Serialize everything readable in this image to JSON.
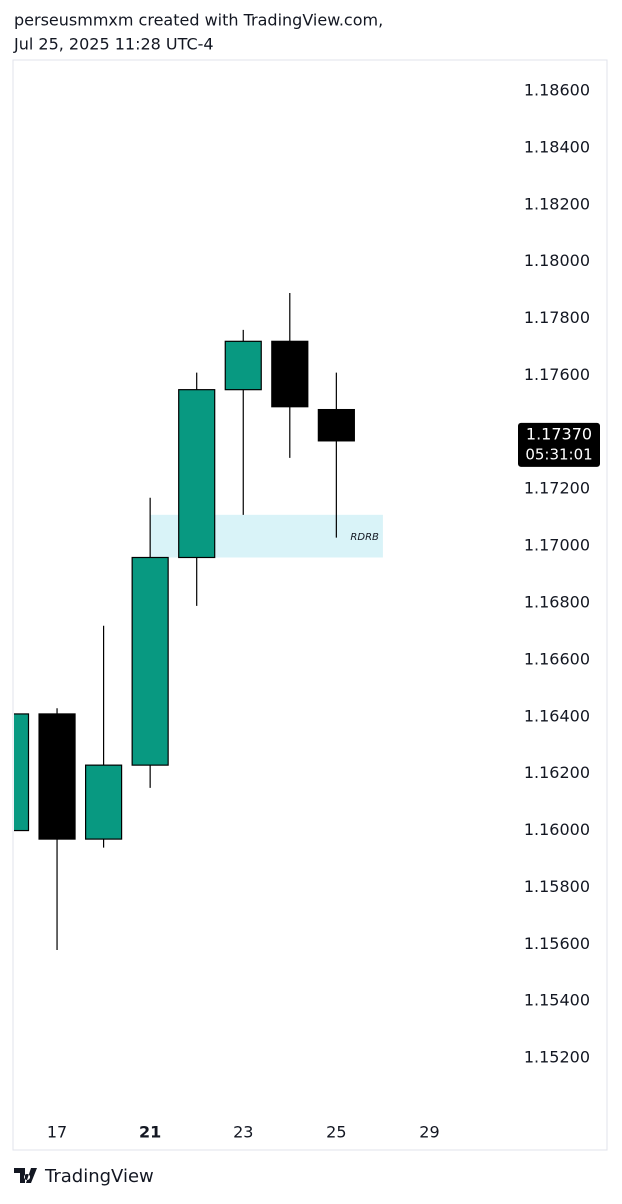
{
  "header": {
    "credit": "perseusmmxm created with TradingView.com,",
    "timestamp": "Jul 25, 2025 11:28 UTC-4"
  },
  "footer": {
    "brand": "TradingView"
  },
  "chart_data": {
    "type": "candlestick",
    "categories": [
      null,
      "17",
      null,
      "21",
      null,
      "23",
      null,
      "25",
      null,
      "29"
    ],
    "open": [
      1.16,
      1.1641,
      1.1597,
      1.1623,
      1.1696,
      1.1755,
      1.1772,
      1.1748,
      null,
      null
    ],
    "high": [
      1.1641,
      1.1643,
      1.1672,
      1.1717,
      1.1761,
      1.1776,
      1.1789,
      1.1761,
      null,
      null
    ],
    "low": [
      1.16,
      1.1558,
      1.1594,
      1.1615,
      1.1679,
      1.1711,
      1.1731,
      1.1703,
      null,
      null
    ],
    "close": [
      1.1641,
      1.1597,
      1.1623,
      1.1696,
      1.1755,
      1.1772,
      1.1749,
      1.1737,
      null,
      null
    ],
    "up_color": "#089981",
    "down_color": "#000000",
    "ylim": [
      1.15,
      1.18709
    ],
    "yticks": [
      {
        "value": 1.186,
        "label": "1.18600"
      },
      {
        "value": 1.184,
        "label": "1.18400"
      },
      {
        "value": 1.182,
        "label": "1.18200"
      },
      {
        "value": 1.18,
        "label": "1.18000"
      },
      {
        "value": 1.178,
        "label": "1.17800"
      },
      {
        "value": 1.176,
        "label": "1.17600"
      },
      {
        "value": 1.174,
        "label": "1.17400"
      },
      {
        "value": 1.172,
        "label": "1.17200"
      },
      {
        "value": 1.17,
        "label": "1.17000"
      },
      {
        "value": 1.168,
        "label": "1.16800"
      },
      {
        "value": 1.166,
        "label": "1.16600"
      },
      {
        "value": 1.164,
        "label": "1.16400"
      },
      {
        "value": 1.162,
        "label": "1.16200"
      },
      {
        "value": 1.16,
        "label": "1.16000"
      },
      {
        "value": 1.158,
        "label": "1.15800"
      },
      {
        "value": 1.156,
        "label": "1.15600"
      },
      {
        "value": 1.154,
        "label": "1.15400"
      },
      {
        "value": 1.152,
        "label": "1.15200"
      }
    ],
    "last_price": {
      "value": 1.1737,
      "label": "1.17370"
    },
    "countdown": "05:31:01",
    "zone": {
      "label": "RDRB",
      "top": 1.1711,
      "bottom": 1.1696,
      "start_index": 3,
      "end_index": 8,
      "color": "#d9f3f8"
    }
  }
}
